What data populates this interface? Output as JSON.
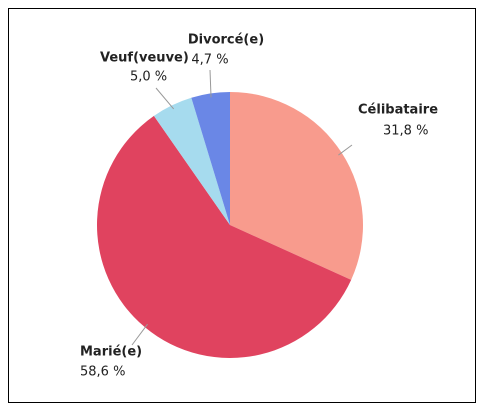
{
  "chart_data": {
    "type": "pie",
    "categories": [
      "Célibataire",
      "Marié(e)",
      "Veuf(veuve)",
      "Divorcé(e)"
    ],
    "values": [
      31.8,
      58.6,
      5.0,
      4.7
    ],
    "value_labels": [
      "31,8 %",
      "58,6 %",
      "5,0 %",
      "4,7 %"
    ],
    "colors": [
      "#f89b8d",
      "#e0435f",
      "#a6dbee",
      "#6a87e6"
    ]
  }
}
